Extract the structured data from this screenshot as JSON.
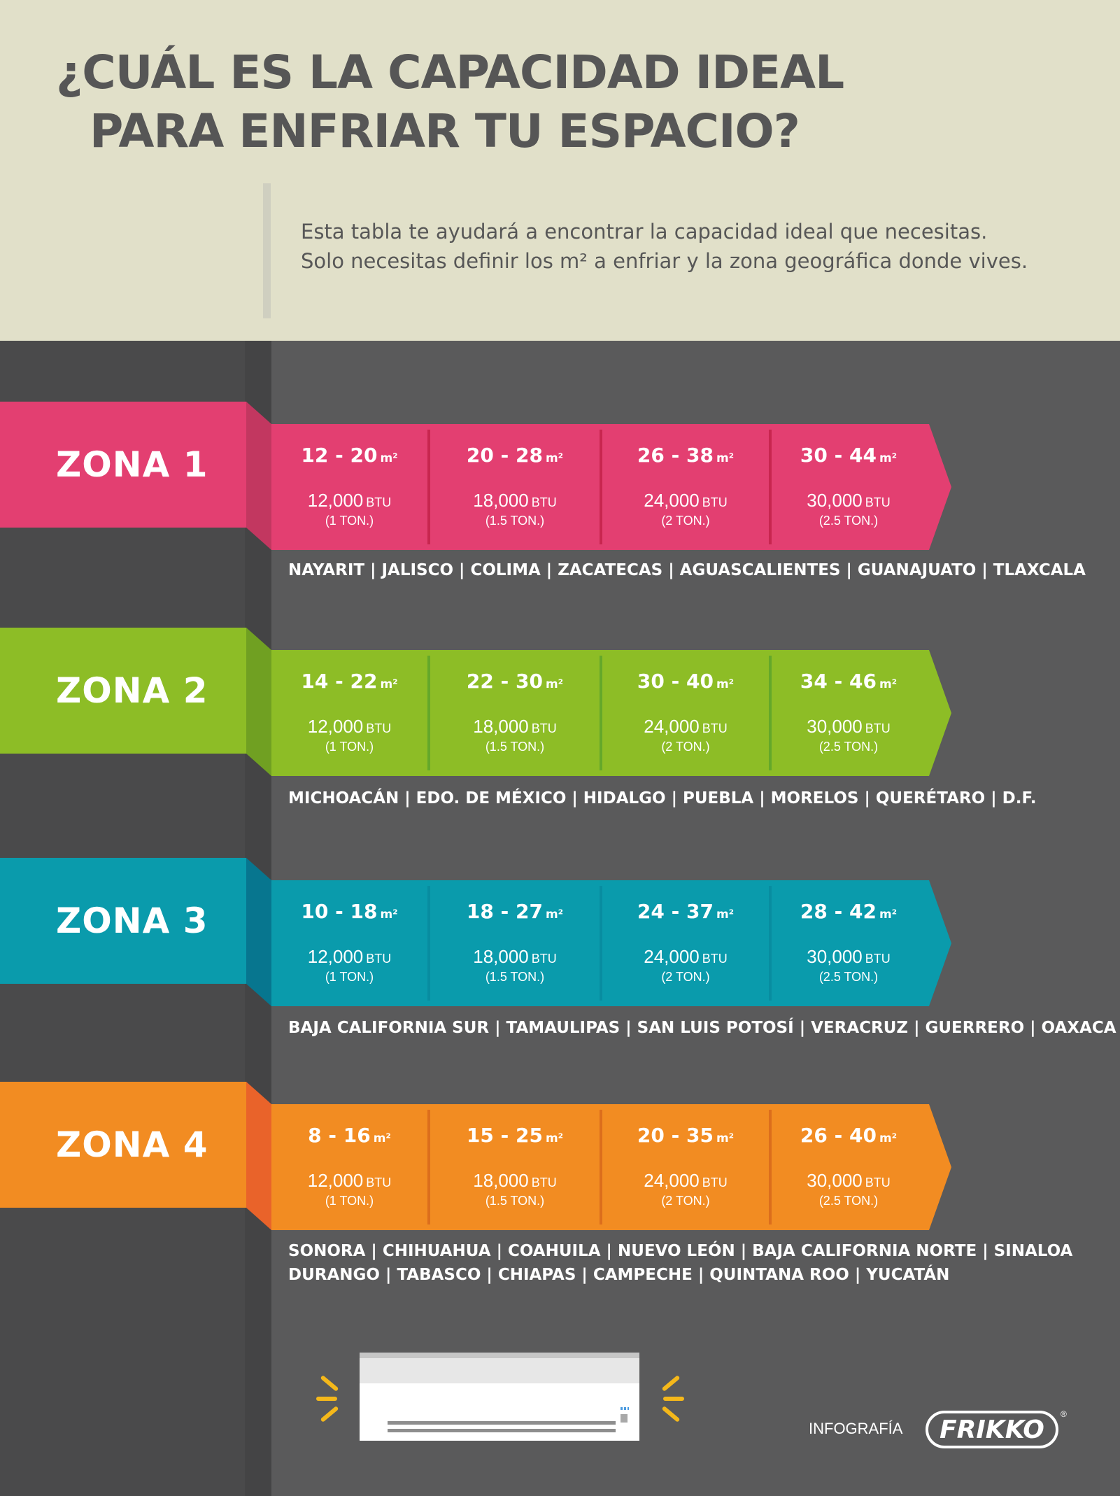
{
  "header": {
    "title_line1": "¿CUÁL ES LA CAPACIDAD IDEAL",
    "title_line2": "PARA ENFRIAR TU ESPACIO?",
    "intro_line1": "Esta tabla te ayudará a encontrar la capacidad ideal que necesitas.",
    "intro_line2": "Solo necesitas definir los  m² a enfriar y la zona geográfica donde vives."
  },
  "units": {
    "area": "m²",
    "btu": "BTU"
  },
  "zones": [
    {
      "label": "ZONA 1",
      "color": "#e33f71",
      "fold_color": "#c23760",
      "divider_color": "#c8264f",
      "cells": [
        {
          "area": "12 - 20",
          "btu": "12,000",
          "ton": "(1 TON.)"
        },
        {
          "area": "20 - 28",
          "btu": "18,000",
          "ton": "(1.5 TON.)"
        },
        {
          "area": "26 - 38",
          "btu": "24,000",
          "ton": "(2 TON.)"
        },
        {
          "area": "30 - 44",
          "btu": "30,000",
          "ton": "(2.5 TON.)"
        }
      ],
      "states": [
        "NAYARIT | JALISCO | COLIMA | ZACATECAS | AGUASCALIENTES | GUANAJUATO | TLAXCALA"
      ]
    },
    {
      "label": "ZONA 2",
      "color": "#8dbd26",
      "fold_color": "#70a022",
      "divider_color": "#64a82a",
      "cells": [
        {
          "area": "14 - 22",
          "btu": "12,000",
          "ton": "(1 TON.)"
        },
        {
          "area": "22 - 30",
          "btu": "18,000",
          "ton": "(1.5 TON.)"
        },
        {
          "area": "30 - 40",
          "btu": "24,000",
          "ton": "(2 TON.)"
        },
        {
          "area": "34 - 46",
          "btu": "30,000",
          "ton": "(2.5 TON.)"
        }
      ],
      "states": [
        "MICHOACÁN | EDO. DE MÉXICO | HIDALGO | PUEBLA | MORELOS | QUERÉTARO | D.F."
      ]
    },
    {
      "label": "ZONA 3",
      "color": "#0a9bac",
      "fold_color": "#07768f",
      "divider_color": "#088da0",
      "cells": [
        {
          "area": "10 - 18",
          "btu": "12,000",
          "ton": "(1 TON.)"
        },
        {
          "area": "18 - 27",
          "btu": "18,000",
          "ton": "(1.5 TON.)"
        },
        {
          "area": "24 - 37",
          "btu": "24,000",
          "ton": "(2 TON.)"
        },
        {
          "area": "28 - 42",
          "btu": "30,000",
          "ton": "(2.5 TON.)"
        }
      ],
      "states": [
        "BAJA CALIFORNIA SUR | TAMAULIPAS | SAN LUIS POTOSÍ | VERACRUZ | GUERRERO | OAXACA"
      ]
    },
    {
      "label": "ZONA 4",
      "color": "#f28c22",
      "fold_color": "#e9632a",
      "divider_color": "#dc6e1c",
      "cells": [
        {
          "area": "8 - 16",
          "btu": "12,000",
          "ton": "(1 TON.)"
        },
        {
          "area": "15 - 25",
          "btu": "18,000",
          "ton": "(1.5 TON.)"
        },
        {
          "area": "20 - 35",
          "btu": "24,000",
          "ton": "(2 TON.)"
        },
        {
          "area": "26 - 40",
          "btu": "30,000",
          "ton": "(2.5 TON.)"
        }
      ],
      "states": [
        "SONORA | CHIHUAHUA | COAHUILA | NUEVO LEÓN | BAJA CALIFORNIA NORTE | SINALOA",
        "DURANGO | TABASCO | CHIAPAS | CAMPECHE | QUINTANA ROO | YUCATÁN"
      ]
    }
  ],
  "footer": {
    "credit": "INFOGRAFÍA",
    "brand": "FRIKKO",
    "registered": "®",
    "illustration_icon": "air-conditioner-icon"
  },
  "colors": {
    "header_bg": "#e1e0c9",
    "body_bg": "#5a5a5b",
    "title_text": "#565656",
    "accent_yellow": "#f5b81a"
  }
}
